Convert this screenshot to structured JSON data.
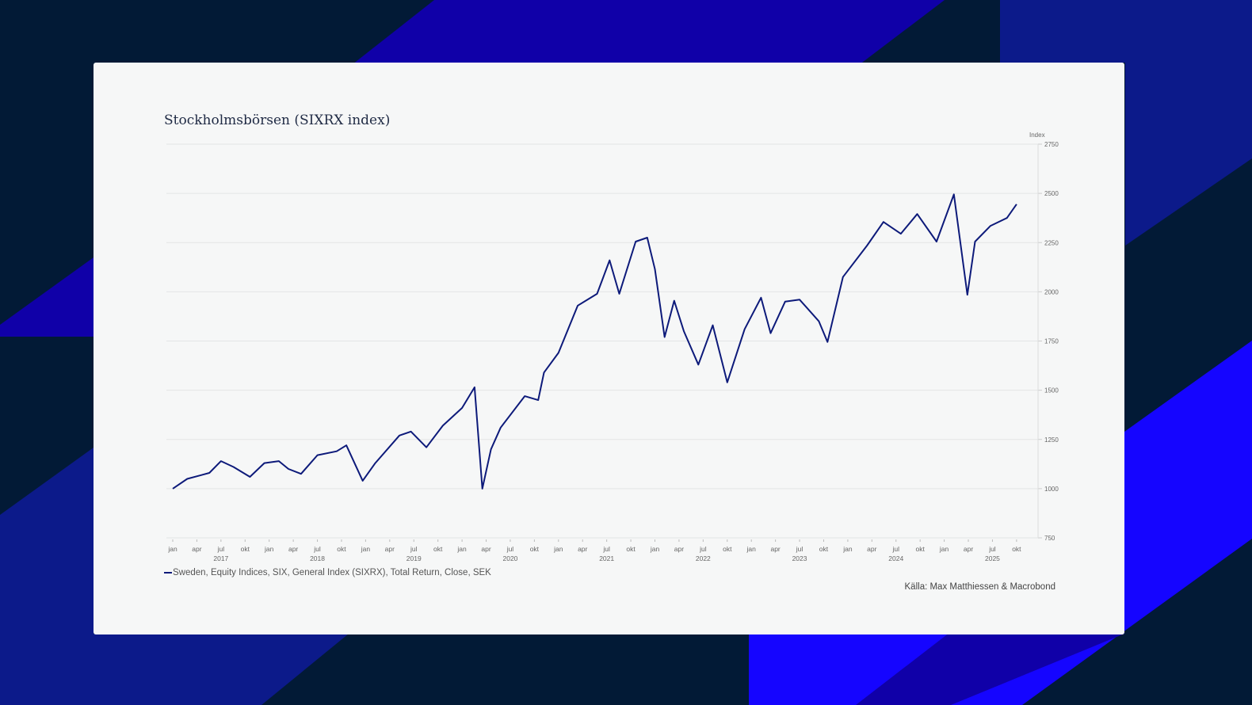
{
  "colors": {
    "background": "#021a36",
    "band_blue": "#1000a8",
    "band_bright": "#1505ff",
    "card": "#f6f7f7",
    "line": "#0d1a7a"
  },
  "title": "Stockholmsbörsen (SIXRX index)",
  "source": "Källa: Max Matthiessen & Macrobond",
  "chart_data": {
    "type": "line",
    "title": "Stockholmsbörsen (SIXRX index)",
    "ylabel": "Index",
    "ylim": [
      750,
      2750
    ],
    "yticks": [
      750,
      1000,
      1250,
      1500,
      1750,
      2000,
      2250,
      2500,
      2750
    ],
    "x_month_labels": [
      "jan",
      "apr",
      "jul",
      "okt"
    ],
    "x_years": [
      "2017",
      "2018",
      "2019",
      "2020",
      "2021",
      "2022",
      "2023",
      "2024",
      "2025"
    ],
    "grid": true,
    "legend": [
      "Sweden, Equity Indices, SIX, General Index (SIXRX), Total Return, Close, SEK"
    ],
    "legend_position": "bottom-left",
    "series": [
      {
        "name": "Sweden, Equity Indices, SIX, General Index (SIXRX), Total Return, Close, SEK",
        "x": [
          2017.0,
          2017.15,
          2017.38,
          2017.5,
          2017.63,
          2017.8,
          2017.95,
          2018.1,
          2018.2,
          2018.33,
          2018.5,
          2018.7,
          2018.8,
          2018.97,
          2019.1,
          2019.35,
          2019.47,
          2019.63,
          2019.8,
          2020.0,
          2020.13,
          2020.21,
          2020.3,
          2020.4,
          2020.65,
          2020.79,
          2020.85,
          2021.0,
          2021.2,
          2021.4,
          2021.53,
          2021.63,
          2021.8,
          2021.92,
          2022.0,
          2022.1,
          2022.2,
          2022.3,
          2022.45,
          2022.6,
          2022.75,
          2022.93,
          2023.1,
          2023.2,
          2023.35,
          2023.5,
          2023.7,
          2023.79,
          2023.95,
          2024.2,
          2024.37,
          2024.55,
          2024.72,
          2024.92,
          2025.1,
          2025.24,
          2025.32,
          2025.48,
          2025.65,
          2025.75
        ],
        "values": [
          1000,
          1050,
          1080,
          1140,
          1110,
          1060,
          1130,
          1140,
          1100,
          1075,
          1170,
          1190,
          1220,
          1040,
          1130,
          1270,
          1290,
          1210,
          1320,
          1410,
          1515,
          1000,
          1200,
          1310,
          1470,
          1450,
          1590,
          1690,
          1930,
          1990,
          2160,
          1990,
          2255,
          2275,
          2115,
          1770,
          1955,
          1800,
          1630,
          1830,
          1540,
          1810,
          1970,
          1790,
          1950,
          1960,
          1850,
          1745,
          2075,
          2235,
          2355,
          2295,
          2395,
          2255,
          2495,
          1985,
          2255,
          2335,
          2375,
          2445
        ]
      }
    ]
  }
}
